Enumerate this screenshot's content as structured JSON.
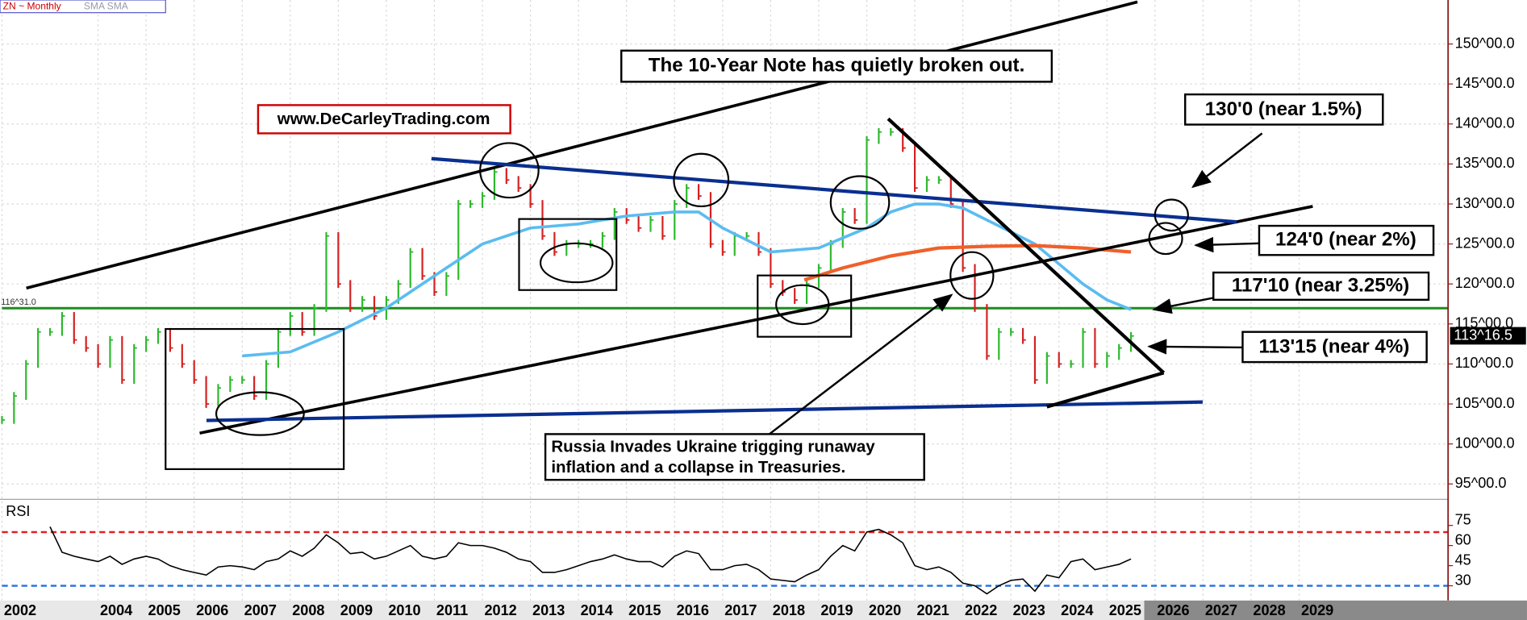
{
  "chart_data": {
    "type": "ohlc",
    "symbol_label": "ZN ~ Monthly",
    "indicator_label": "SMA SMA",
    "title": "The 10-Year Note has quietly broken out.",
    "watermark": "www.DeCarleyTrading.com",
    "annotations": [
      "130'0 (near 1.5%)",
      "124'0 (near 2%)",
      "117'10 (near 3.25%)",
      "113'15 (near 4%)",
      "Russia Invades Ukraine trigging runaway",
      "inflation and a collapse in Treasuries."
    ],
    "reference_line": {
      "value": 116.97,
      "label": "116^31.0",
      "color": "#1e8c1e"
    },
    "last_price": {
      "value": 113.52,
      "label": "113^16.5"
    },
    "up_color": "#2db82d",
    "down_color": "#d42020",
    "x": [
      2002,
      2002.25,
      2002.5,
      2002.75,
      2003,
      2003.25,
      2003.5,
      2003.75,
      2004,
      2004.25,
      2004.5,
      2004.75,
      2005,
      2005.25,
      2005.5,
      2005.75,
      2006,
      2006.25,
      2006.5,
      2006.75,
      2007,
      2007.25,
      2007.5,
      2007.75,
      2008,
      2008.25,
      2008.5,
      2008.75,
      2009,
      2009.25,
      2009.5,
      2009.75,
      2010,
      2010.25,
      2010.5,
      2010.75,
      2011,
      2011.25,
      2011.5,
      2011.75,
      2012,
      2012.25,
      2012.5,
      2012.75,
      2013,
      2013.25,
      2013.5,
      2013.75,
      2014,
      2014.25,
      2014.5,
      2014.75,
      2015,
      2015.25,
      2015.5,
      2015.75,
      2016,
      2016.25,
      2016.5,
      2016.75,
      2017,
      2017.25,
      2017.5,
      2017.75,
      2018,
      2018.25,
      2018.5,
      2018.75,
      2019,
      2019.25,
      2019.5,
      2019.75,
      2020,
      2020.25,
      2020.5,
      2020.75,
      2021,
      2021.25,
      2021.5,
      2021.75,
      2022,
      2022.25,
      2022.5,
      2022.75,
      2023,
      2023.25,
      2023.5,
      2023.75,
      2024,
      2024.25,
      2024.5,
      2024.75,
      2025,
      2025.25,
      2025.5
    ],
    "values": [
      103,
      106,
      110,
      114,
      114,
      116,
      113,
      112,
      110,
      113,
      108,
      112,
      113,
      114,
      112,
      110,
      108,
      105,
      107,
      108,
      108,
      106,
      110,
      114,
      116,
      114,
      117,
      126,
      120,
      117,
      118,
      116,
      118,
      120,
      124,
      121,
      119,
      121,
      130,
      130,
      131,
      134,
      133,
      132,
      130,
      126,
      124,
      125,
      125,
      125,
      126,
      129,
      128,
      127,
      128,
      126,
      130,
      132,
      131,
      125,
      124,
      126,
      126,
      124,
      120,
      119,
      118,
      120,
      122,
      125,
      129,
      128,
      138,
      139,
      139,
      137,
      132,
      133,
      133,
      130,
      122,
      117,
      111,
      114,
      114,
      113,
      108,
      111,
      110,
      110,
      114,
      110,
      111,
      112,
      113.5
    ],
    "sma_fast": {
      "color": "#5bbcf0",
      "x": [
        2007,
        2008,
        2009,
        2010,
        2011,
        2012,
        2013,
        2014,
        2015,
        2016,
        2016.5,
        2017,
        2018,
        2019,
        2020,
        2020.5,
        2021,
        2021.5,
        2022,
        2022.5,
        2023,
        2023.5,
        2024,
        2024.5,
        2025,
        2025.5
      ],
      "values": [
        111,
        111.5,
        114,
        117,
        121,
        125,
        127,
        127.5,
        128.5,
        129,
        129,
        127,
        124,
        124.5,
        127,
        129,
        130,
        130,
        129.5,
        128,
        126.5,
        125,
        122.5,
        120,
        118,
        116.8
      ]
    },
    "sma_slow": {
      "color": "#f0602a",
      "x": [
        2018.7,
        2019.5,
        2020.5,
        2021.5,
        2022.5,
        2023.5,
        2024.5,
        2025.5
      ],
      "values": [
        120.5,
        122,
        123.5,
        124.5,
        124.7,
        124.8,
        124.5,
        124
      ]
    },
    "xlim": [
      2002,
      2032.1
    ],
    "xticks": [
      2002,
      2004,
      2005,
      2006,
      2007,
      2008,
      2009,
      2010,
      2011,
      2012,
      2013,
      2014,
      2015,
      2016,
      2017,
      2018,
      2019,
      2020,
      2021,
      2022,
      2023,
      2024,
      2025,
      2026,
      2027,
      2028,
      2029
    ],
    "ylim": [
      93.2,
      155.5
    ],
    "yticks": [
      {
        "value": 95,
        "label": "95^00.0"
      },
      {
        "value": 100,
        "label": "100^00.0"
      },
      {
        "value": 105,
        "label": "105^00.0"
      },
      {
        "value": 110,
        "label": "110^00.0"
      },
      {
        "value": 115,
        "label": "115^00.0"
      },
      {
        "value": 120,
        "label": "120^00.0"
      },
      {
        "value": 125,
        "label": "125^00.0"
      },
      {
        "value": 130,
        "label": "130^00.0"
      },
      {
        "value": 135,
        "label": "135^00.0"
      },
      {
        "value": 140,
        "label": "140^00.0"
      },
      {
        "value": 145,
        "label": "145^00.0"
      },
      {
        "value": 150,
        "label": "150^00.0"
      }
    ],
    "rsi": {
      "label": "RSI",
      "ylim": [
        19,
        93
      ],
      "yticks": [
        30,
        45,
        60,
        75
      ],
      "overbought": 70,
      "oversold": 30,
      "x": [
        2003,
        2003.25,
        2003.5,
        2003.75,
        2004,
        2004.25,
        2004.5,
        2004.75,
        2005,
        2005.25,
        2005.5,
        2005.75,
        2006,
        2006.25,
        2006.5,
        2006.75,
        2007,
        2007.25,
        2007.5,
        2007.75,
        2008,
        2008.25,
        2008.5,
        2008.75,
        2009,
        2009.25,
        2009.5,
        2009.75,
        2010,
        2010.25,
        2010.5,
        2010.75,
        2011,
        2011.25,
        2011.5,
        2011.75,
        2012,
        2012.25,
        2012.5,
        2012.75,
        2013,
        2013.25,
        2013.5,
        2013.75,
        2014,
        2014.25,
        2014.5,
        2014.75,
        2015,
        2015.25,
        2015.5,
        2015.75,
        2016,
        2016.25,
        2016.5,
        2016.75,
        2017,
        2017.25,
        2017.5,
        2017.75,
        2018,
        2018.25,
        2018.5,
        2018.75,
        2019,
        2019.25,
        2019.5,
        2019.75,
        2020,
        2020.25,
        2020.5,
        2020.75,
        2021,
        2021.25,
        2021.5,
        2021.75,
        2022,
        2022.25,
        2022.5,
        2022.75,
        2023,
        2023.25,
        2023.5,
        2023.75,
        2024,
        2024.25,
        2024.5,
        2024.75,
        2025,
        2025.25,
        2025.5
      ],
      "values": [
        74,
        55,
        52,
        50,
        48,
        52,
        46,
        50,
        52,
        50,
        45,
        42,
        40,
        38,
        44,
        45,
        44,
        42,
        48,
        50,
        56,
        52,
        58,
        68,
        62,
        54,
        55,
        50,
        52,
        56,
        60,
        52,
        50,
        52,
        62,
        60,
        60,
        58,
        55,
        50,
        48,
        40,
        40,
        42,
        45,
        48,
        50,
        53,
        50,
        48,
        48,
        44,
        52,
        56,
        54,
        42,
        42,
        45,
        46,
        42,
        35,
        34,
        33,
        38,
        42,
        52,
        60,
        56,
        70,
        72,
        68,
        62,
        45,
        42,
        44,
        40,
        32,
        30,
        24,
        30,
        34,
        35,
        26,
        38,
        36,
        48,
        50,
        42,
        44,
        46,
        50
      ]
    }
  }
}
